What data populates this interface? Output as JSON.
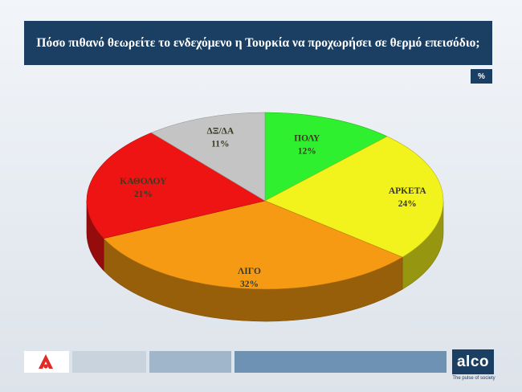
{
  "title": "Πόσο πιθανό θεωρείτε το ενδεχόμενο η Τουρκία να προχωρήσει σε θερμό επεισόδιο;",
  "unit_badge": "%",
  "brand": {
    "logo_text": "alco",
    "tagline": "The pulse of society",
    "client_logo": "red-triangle-logo"
  },
  "colors": {
    "title_bar": "#1a3f63",
    "footer_blocks": [
      "#ffffff",
      "#c8d3de",
      "#9fb6cb",
      "#6e92b3"
    ]
  },
  "chart_data": {
    "type": "pie",
    "style": "3d",
    "categories": [
      "ΠΟΛΥ",
      "ΑΡΚΕΤΑ",
      "ΛΙΓΟ",
      "ΚΑΘΟΛΟΥ",
      "ΔΞ/ΔΑ"
    ],
    "values": [
      12,
      24,
      32,
      21,
      11
    ],
    "value_labels": [
      "12%",
      "24%",
      "32%",
      "21%",
      "11%"
    ],
    "colors": [
      "#2ef02e",
      "#f2f21c",
      "#f59a12",
      "#ee1414",
      "#c4c4c4"
    ],
    "title": "Πόσο πιθανό θεωρείτε το ενδεχόμενο η Τουρκία να προχωρήσει σε θερμό επεισόδιο;"
  }
}
